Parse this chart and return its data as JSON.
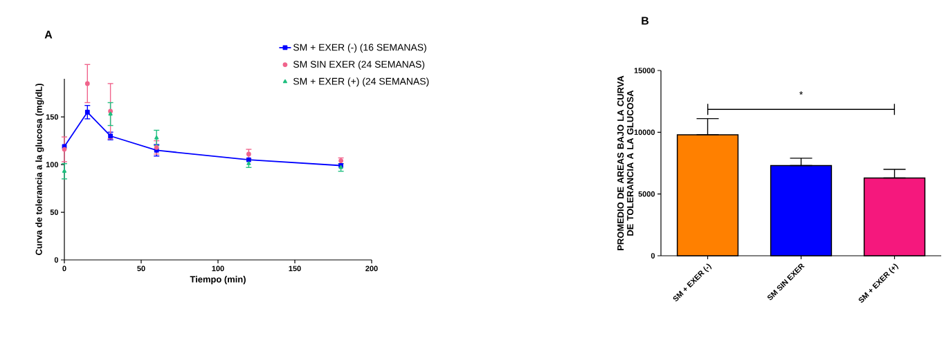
{
  "chart_data": [
    {
      "type": "line",
      "title": "A",
      "xlabel": "Tiempo (min)",
      "ylabel": "Curva de tolerancia a la glucosa (mg/dL)",
      "x": [
        0,
        15,
        30,
        60,
        120,
        180
      ],
      "series": [
        {
          "name": "SM + EXER (-) (16 SEMANAS)",
          "type": "line",
          "marker": "square",
          "color": "#0000ff",
          "values": [
            119,
            155,
            130,
            115,
            105,
            99
          ],
          "errors": [
            null,
            7,
            4,
            6,
            null,
            null
          ]
        },
        {
          "name": "SM SIN EXER (24 SEMANAS)",
          "type": "scatter",
          "marker": "circle",
          "color": "#f0648c",
          "values": [
            116,
            185,
            156,
            118,
            111,
            104
          ],
          "errors": [
            13,
            20,
            [
              127,
              185
            ],
            7,
            5,
            3
          ]
        },
        {
          "name": "SM + EXER (+) (24 SEMANAS)",
          "type": "scatter",
          "marker": "triangle",
          "color": "#1fbf7f",
          "values": [
            93,
            null,
            153,
            128,
            101,
            97
          ],
          "errors": [
            8,
            null,
            12,
            8,
            4,
            4
          ]
        }
      ],
      "xlim": [
        0,
        200
      ],
      "ylim": [
        0,
        190
      ],
      "xticks": [
        0,
        50,
        100,
        150,
        200
      ],
      "yticks": [
        0,
        50,
        100,
        150
      ],
      "legend": "top right"
    },
    {
      "type": "bar",
      "title": "B",
      "ylabel": "PROMEDIO DE AREAS BAJO LA CURVA DE TOLERANCIA A LA GLUCOSA",
      "categories": [
        "SM + EXER (-)",
        "SM SIN EXER",
        "SM + EXER (+)"
      ],
      "values": [
        9800,
        7300,
        6300
      ],
      "colors": [
        "#ff8000",
        "#0000ff",
        "#f5187d"
      ],
      "errors": [
        [
          9800,
          11100
        ],
        [
          7300,
          7900
        ],
        [
          6300,
          7000
        ]
      ],
      "ylim": [
        0,
        15000
      ],
      "yticks": [
        0,
        5000,
        10000,
        15000
      ],
      "annotations": [
        "*"
      ]
    }
  ]
}
